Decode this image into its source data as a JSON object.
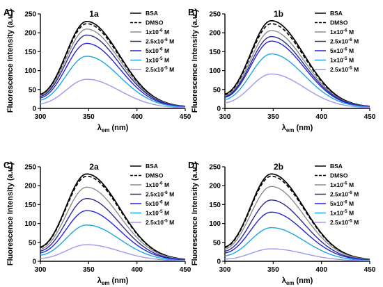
{
  "figure": {
    "ylabel": "Fluorescence Intensity (a.u.)",
    "xlabel_main": "λ",
    "xlabel_sub": "em",
    "xlabel_unit": " (nm)",
    "xlim": [
      300,
      450
    ],
    "ylim": [
      0,
      250
    ],
    "xticks": [
      300,
      350,
      400,
      450
    ],
    "yticks": [
      0,
      50,
      100,
      150,
      200,
      250
    ]
  },
  "legend": [
    {
      "base": "BSA",
      "sup": "",
      "color": "#000000",
      "dash": false
    },
    {
      "base": "DMSO",
      "sup": "",
      "color": "#000000",
      "dash": true
    },
    {
      "base": "1x10",
      "sup": "-6",
      "suffix": " M",
      "color": "#8c8c8c",
      "dash": false
    },
    {
      "base": "2.5x10",
      "sup": "-6",
      "suffix": " M",
      "color": "#2a2a8c",
      "dash": false
    },
    {
      "base": "5x10",
      "sup": "-6",
      "suffix": " M",
      "color": "#2222dd",
      "dash": false
    },
    {
      "base": "1x10",
      "sup": "-5",
      "suffix": " M",
      "color": "#1aa6e0",
      "dash": false
    },
    {
      "base": "2.5x10",
      "sup": "-5",
      "suffix": " M",
      "color": "#9a9af0",
      "dash": false
    }
  ],
  "chart_data": [
    {
      "type": "line",
      "panel": "A)",
      "title": "1a",
      "x_peak_nm": 348,
      "xlim": [
        300,
        450
      ],
      "ylim": [
        0,
        250
      ],
      "series": [
        {
          "name": "BSA",
          "peak": 230,
          "start": 18,
          "end": 3
        },
        {
          "name": "DMSO",
          "peak": 224,
          "start": 17,
          "end": 3
        },
        {
          "name": "1x10-6 M",
          "peak": 210,
          "start": 16,
          "end": 3
        },
        {
          "name": "2.5x10-6 M",
          "peak": 194,
          "start": 15,
          "end": 3
        },
        {
          "name": "5x10-6 M",
          "peak": 172,
          "start": 13,
          "end": 2
        },
        {
          "name": "1x10-5 M",
          "peak": 138,
          "start": 10,
          "end": 2
        },
        {
          "name": "2.5x10-5 M",
          "peak": 77,
          "start": 6,
          "end": 1
        }
      ]
    },
    {
      "type": "line",
      "panel": "B)",
      "title": "1b",
      "x_peak_nm": 348,
      "xlim": [
        300,
        450
      ],
      "ylim": [
        0,
        250
      ],
      "series": [
        {
          "name": "BSA",
          "peak": 232,
          "start": 18,
          "end": 3
        },
        {
          "name": "DMSO",
          "peak": 224,
          "start": 17,
          "end": 3
        },
        {
          "name": "1x10-6 M",
          "peak": 206,
          "start": 16,
          "end": 3
        },
        {
          "name": "2.5x10-6 M",
          "peak": 190,
          "start": 15,
          "end": 3
        },
        {
          "name": "5x10-6 M",
          "peak": 178,
          "start": 14,
          "end": 2
        },
        {
          "name": "1x10-5 M",
          "peak": 144,
          "start": 11,
          "end": 2
        },
        {
          "name": "2.5x10-5 M",
          "peak": 91,
          "start": 7,
          "end": 1
        }
      ]
    },
    {
      "type": "line",
      "panel": "C)",
      "title": "2a",
      "x_peak_nm": 348,
      "xlim": [
        300,
        450
      ],
      "ylim": [
        0,
        250
      ],
      "series": [
        {
          "name": "BSA",
          "peak": 231,
          "start": 18,
          "end": 3
        },
        {
          "name": "DMSO",
          "peak": 225,
          "start": 17,
          "end": 3
        },
        {
          "name": "1x10-6 M",
          "peak": 196,
          "start": 15,
          "end": 3
        },
        {
          "name": "2.5x10-6 M",
          "peak": 166,
          "start": 13,
          "end": 2
        },
        {
          "name": "5x10-6 M",
          "peak": 134,
          "start": 11,
          "end": 2
        },
        {
          "name": "1x10-5 M",
          "peak": 96,
          "start": 8,
          "end": 1
        },
        {
          "name": "2.5x10-5 M",
          "peak": 44,
          "start": 4,
          "end": 1
        }
      ]
    },
    {
      "type": "line",
      "panel": "D)",
      "title": "2b",
      "x_peak_nm": 348,
      "xlim": [
        300,
        450
      ],
      "ylim": [
        0,
        250
      ],
      "series": [
        {
          "name": "BSA",
          "peak": 231,
          "start": 18,
          "end": 3
        },
        {
          "name": "DMSO",
          "peak": 225,
          "start": 17,
          "end": 3
        },
        {
          "name": "1x10-6 M",
          "peak": 198,
          "start": 15,
          "end": 3
        },
        {
          "name": "2.5x10-6 M",
          "peak": 162,
          "start": 13,
          "end": 2
        },
        {
          "name": "5x10-6 M",
          "peak": 130,
          "start": 11,
          "end": 2
        },
        {
          "name": "1x10-5 M",
          "peak": 89,
          "start": 7,
          "end": 1
        },
        {
          "name": "2.5x10-5 M",
          "peak": 33,
          "start": 3,
          "end": 1
        }
      ]
    }
  ]
}
